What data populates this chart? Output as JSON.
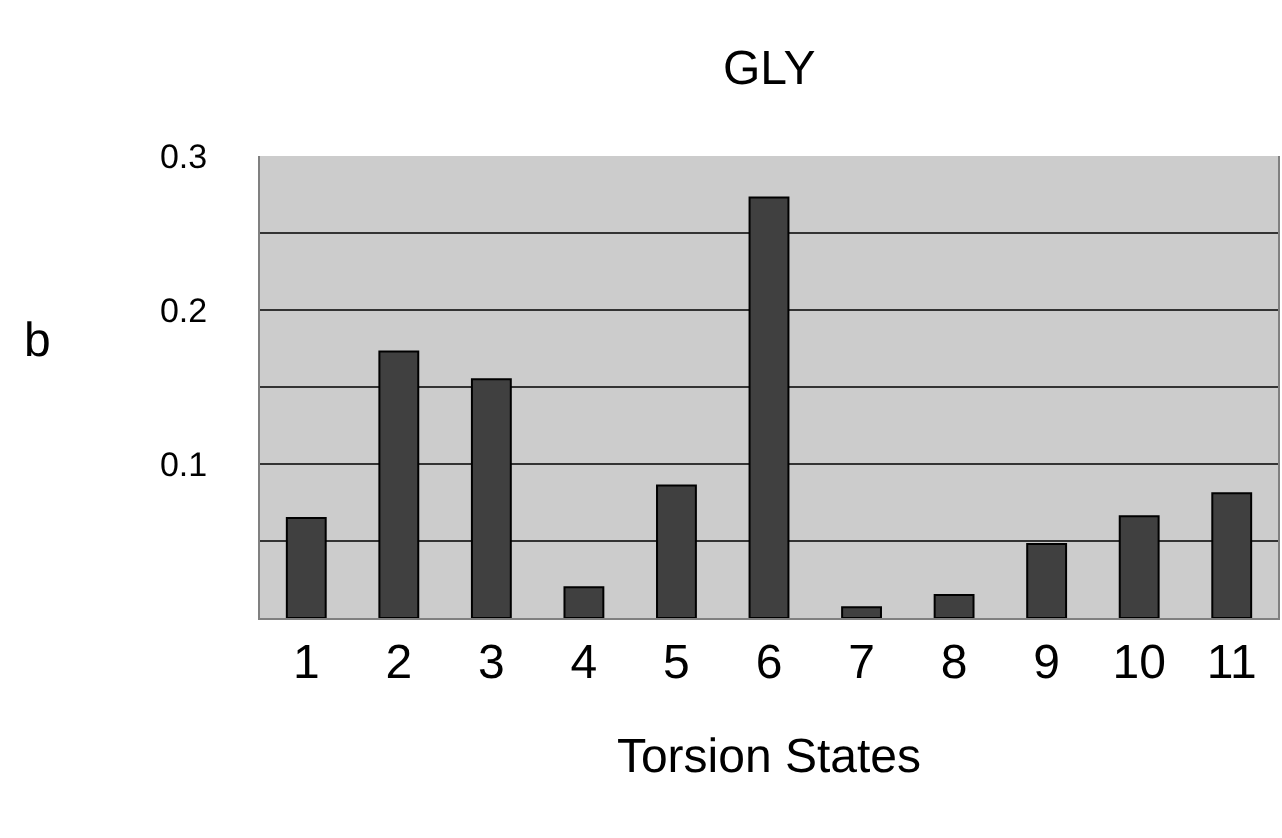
{
  "chart_data": {
    "type": "bar",
    "title": "GLY",
    "xlabel": "Torsion States",
    "ylabel": "b",
    "categories": [
      "1",
      "2",
      "3",
      "4",
      "5",
      "6",
      "7",
      "8",
      "9",
      "10",
      "11"
    ],
    "values": [
      0.065,
      0.173,
      0.155,
      0.02,
      0.086,
      0.273,
      0.007,
      0.015,
      0.048,
      0.066,
      0.081
    ],
    "color": "#404040",
    "ylim": [
      0,
      0.3
    ],
    "yticks": [
      {
        "value": 0.05,
        "label": null
      },
      0.1,
      {
        "value": 0.15,
        "label": null
      },
      0.2,
      {
        "value": 0.25,
        "label": null
      },
      0.3
    ],
    "grid": "y",
    "legend": false
  }
}
